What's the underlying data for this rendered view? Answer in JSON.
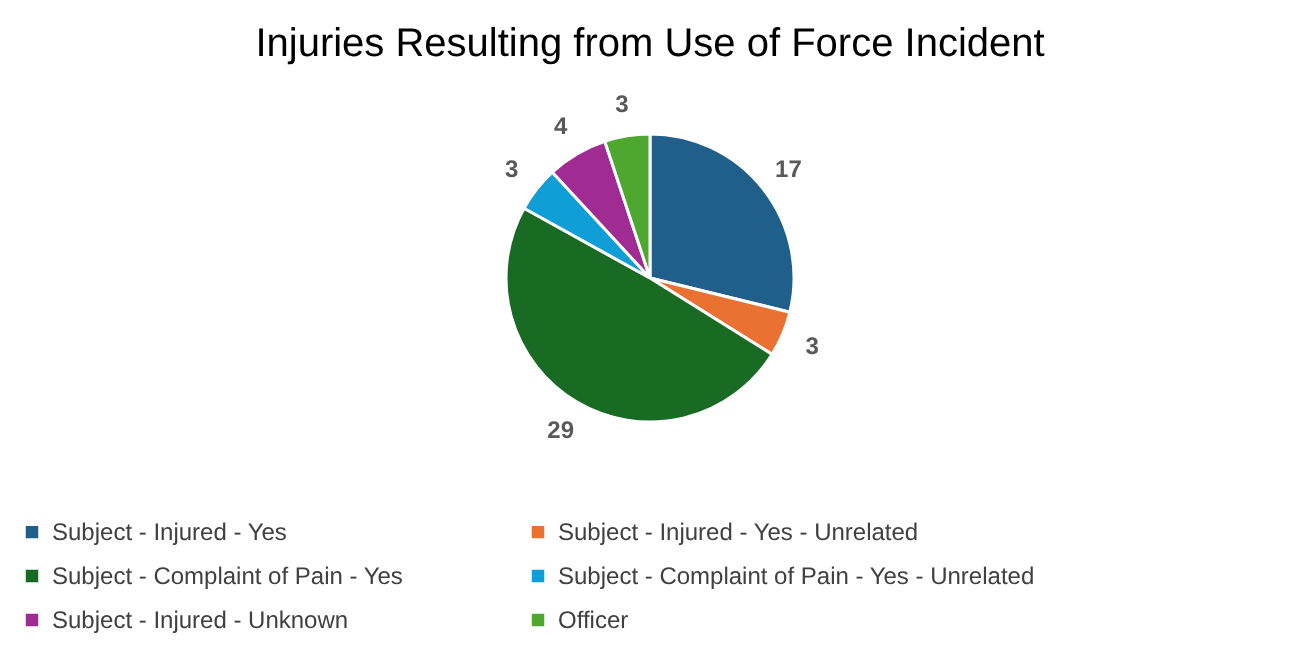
{
  "chart_data": {
    "type": "pie",
    "title": "Injuries Resulting from Use of Force Incident",
    "categories": [
      "Subject - Injured - Yes",
      "Subject - Injured - Yes - Unrelated",
      "Subject - Complaint of Pain - Yes",
      "Subject - Complaint of Pain - Yes - Unrelated",
      "Subject - Injured - Unknown",
      "Officer"
    ],
    "values": [
      17,
      3,
      29,
      3,
      4,
      3
    ],
    "colors": [
      "#1f5f8a",
      "#e97132",
      "#196b24",
      "#0f9ed5",
      "#a02b93",
      "#4ea72e"
    ],
    "data_labels": true,
    "legend": "bottom"
  }
}
